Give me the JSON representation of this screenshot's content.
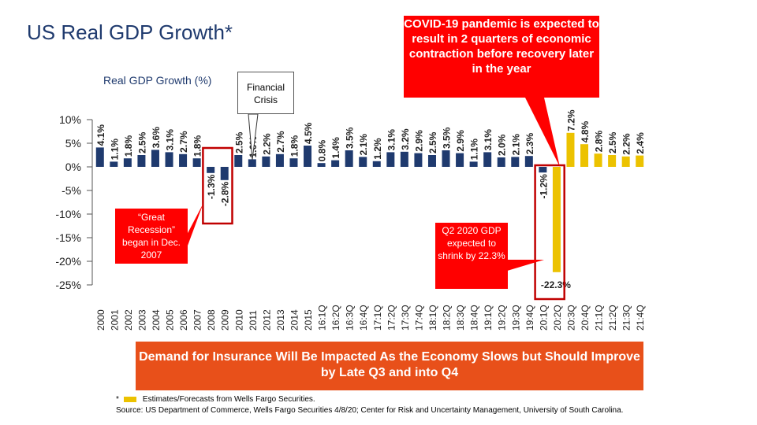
{
  "slide": {
    "title": "US Real GDP Growth*",
    "banner": "Demand for Insurance Will Be Impacted As the Economy Slows but Should Improve by Late Q3 and into Q4",
    "footnote_marker": "*",
    "footnote_text": "Estimates/Forecasts from Wells Fargo Securities.",
    "source": "Source: US Department of Commerce, Wells Fargo Securities 4/8/20; Center for Risk and Uncertainty Management, University of South Carolina."
  },
  "callouts": {
    "financial_crisis": "Financial Crisis",
    "covid": "COVID-19 pandemic is expected to result in 2 quarters of economic contraction before recovery later in the year",
    "great_recession": "“Great Recession” began in Dec. 2007",
    "q2_2020": "Q2 2020 GDP expected to shrink by 22.3%"
  },
  "colors": {
    "actual": "#1f3a6e",
    "forecast": "#ecc200",
    "highlight": "#c00000",
    "callout": "#ff0000",
    "banner": "#e8501a"
  },
  "chart_data": {
    "type": "bar",
    "title": "",
    "ylabel": "Real GDP Growth (%)",
    "ylim": [
      -25,
      10
    ],
    "yticks": [
      "10%",
      "5%",
      "0%",
      "-5%",
      "-10%",
      "-15%",
      "-20%",
      "-25%"
    ],
    "ytick_values": [
      10,
      5,
      0,
      -5,
      -10,
      -15,
      -20,
      -25
    ],
    "categories": [
      "2000",
      "2001",
      "2002",
      "2003",
      "2004",
      "2005",
      "2006",
      "2007",
      "2008",
      "2009",
      "2010",
      "2011",
      "2012",
      "2013",
      "2014",
      "2015",
      "16:1Q",
      "16:2Q",
      "16:3Q",
      "16:4Q",
      "17:1Q",
      "17:2Q",
      "17:3Q",
      "17:4Q",
      "18:1Q",
      "18:2Q",
      "18:3Q",
      "18:4Q",
      "19:1Q",
      "19:2Q",
      "19:3Q",
      "19:4Q",
      "20:1Q",
      "20:2Q",
      "20:3Q",
      "20:4Q",
      "21:1Q",
      "21:2Q",
      "21:3Q",
      "21:4Q"
    ],
    "values": [
      4.1,
      1.1,
      1.8,
      2.5,
      3.6,
      3.1,
      2.7,
      1.8,
      -1.3,
      -2.8,
      2.5,
      1.6,
      2.2,
      2.7,
      1.8,
      4.5,
      0.8,
      1.4,
      3.5,
      2.1,
      1.2,
      3.1,
      3.2,
      2.9,
      2.5,
      3.5,
      2.9,
      1.1,
      3.1,
      2.0,
      2.1,
      2.3,
      -1.2,
      -22.3,
      7.2,
      4.8,
      2.8,
      2.5,
      2.2,
      2.4
    ],
    "labels": [
      "4.1%",
      "1.1%",
      "1.8%",
      "2.5%",
      "3.6%",
      "3.1%",
      "2.7%",
      "1.8%",
      "-1.3%",
      "-2.8%",
      "2.5%",
      "1.6%",
      "2.2%",
      "2.7%",
      "1.8%",
      "4.5%",
      "0.8%",
      "1.4%",
      "3.5%",
      "2.1%",
      "1.2%",
      "3.1%",
      "3.2%",
      "2.9%",
      "2.5%",
      "3.5%",
      "2.9%",
      "1.1%",
      "3.1%",
      "2.0%",
      "2.1%",
      "2.3%",
      "-1.2%",
      "-22.3%",
      "7.2%",
      "4.8%",
      "2.8%",
      "2.5%",
      "2.2%",
      "2.4%"
    ],
    "forecast_from_index": 32,
    "legend": "Estimates/Forecasts from Wells Fargo Securities.",
    "grid": false
  }
}
